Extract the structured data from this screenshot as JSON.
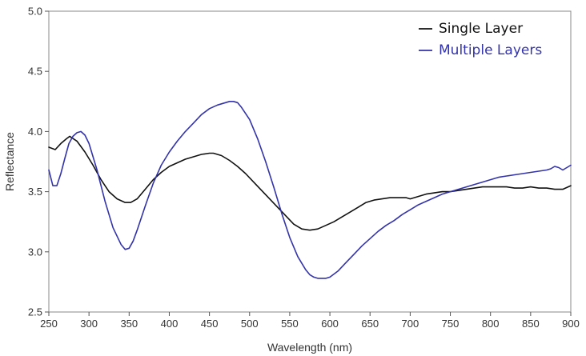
{
  "chart_data": {
    "type": "line",
    "title": "",
    "xlabel": "Wavelength (nm)",
    "ylabel": "Reflectance",
    "xlim": [
      250,
      900
    ],
    "ylim": [
      2.5,
      5.0
    ],
    "xticks": [
      250,
      300,
      350,
      400,
      450,
      500,
      550,
      600,
      650,
      700,
      750,
      800,
      850,
      900
    ],
    "xtick_labels": [
      "250",
      "300",
      "350",
      "400",
      "450",
      "500",
      "550",
      "600",
      "650",
      "700",
      "750",
      "800",
      "850",
      "900"
    ],
    "yticks": [
      2.5,
      3.0,
      3.5,
      4.0,
      4.5,
      5.0
    ],
    "ytick_labels": [
      "2.5",
      "3.0",
      "3.5",
      "4.0",
      "4.5",
      "5.0"
    ],
    "grid": false,
    "legend": "top-right",
    "series": [
      {
        "name": "Single Layer",
        "color": "#111111",
        "x": [
          250,
          258,
          265,
          272,
          276,
          285,
          295,
          305,
          315,
          325,
          335,
          345,
          352,
          360,
          370,
          380,
          390,
          400,
          410,
          420,
          430,
          440,
          450,
          455,
          465,
          475,
          485,
          495,
          505,
          515,
          525,
          535,
          545,
          555,
          565,
          575,
          585,
          595,
          605,
          615,
          625,
          635,
          645,
          655,
          665,
          675,
          685,
          695,
          700,
          710,
          720,
          730,
          740,
          750,
          760,
          770,
          780,
          790,
          800,
          810,
          820,
          830,
          840,
          850,
          860,
          870,
          880,
          890,
          900
        ],
        "y": [
          3.87,
          3.85,
          3.9,
          3.94,
          3.96,
          3.92,
          3.83,
          3.72,
          3.6,
          3.5,
          3.44,
          3.41,
          3.41,
          3.44,
          3.52,
          3.6,
          3.66,
          3.71,
          3.74,
          3.77,
          3.79,
          3.81,
          3.82,
          3.82,
          3.8,
          3.76,
          3.71,
          3.65,
          3.58,
          3.51,
          3.44,
          3.37,
          3.3,
          3.23,
          3.19,
          3.18,
          3.19,
          3.22,
          3.25,
          3.29,
          3.33,
          3.37,
          3.41,
          3.43,
          3.44,
          3.45,
          3.45,
          3.45,
          3.44,
          3.46,
          3.48,
          3.49,
          3.5,
          3.5,
          3.51,
          3.52,
          3.53,
          3.54,
          3.54,
          3.54,
          3.54,
          3.53,
          3.53,
          3.54,
          3.53,
          3.53,
          3.52,
          3.52,
          3.55
        ]
      },
      {
        "name": "Multiple Layers",
        "color": "#3333aa",
        "x": [
          250,
          255,
          260,
          265,
          270,
          275,
          280,
          285,
          290,
          295,
          300,
          310,
          320,
          330,
          340,
          345,
          350,
          355,
          360,
          370,
          380,
          390,
          400,
          410,
          420,
          430,
          440,
          450,
          460,
          470,
          475,
          480,
          485,
          490,
          500,
          510,
          520,
          530,
          540,
          550,
          560,
          570,
          575,
          580,
          585,
          590,
          595,
          600,
          610,
          620,
          630,
          640,
          650,
          660,
          670,
          680,
          690,
          700,
          710,
          720,
          730,
          740,
          750,
          760,
          770,
          780,
          790,
          800,
          810,
          820,
          830,
          840,
          850,
          860,
          870,
          875,
          880,
          885,
          890,
          895,
          900
        ],
        "y": [
          3.68,
          3.55,
          3.55,
          3.65,
          3.78,
          3.9,
          3.96,
          3.99,
          4.0,
          3.97,
          3.9,
          3.68,
          3.42,
          3.2,
          3.06,
          3.02,
          3.03,
          3.09,
          3.18,
          3.38,
          3.57,
          3.72,
          3.83,
          3.92,
          4.0,
          4.07,
          4.14,
          4.19,
          4.22,
          4.24,
          4.25,
          4.25,
          4.24,
          4.2,
          4.1,
          3.94,
          3.75,
          3.54,
          3.32,
          3.12,
          2.96,
          2.85,
          2.81,
          2.79,
          2.78,
          2.78,
          2.78,
          2.79,
          2.84,
          2.91,
          2.98,
          3.05,
          3.11,
          3.17,
          3.22,
          3.26,
          3.31,
          3.35,
          3.39,
          3.42,
          3.45,
          3.48,
          3.5,
          3.52,
          3.54,
          3.56,
          3.58,
          3.6,
          3.62,
          3.63,
          3.64,
          3.65,
          3.66,
          3.67,
          3.68,
          3.69,
          3.71,
          3.7,
          3.68,
          3.7,
          3.72
        ]
      }
    ]
  }
}
